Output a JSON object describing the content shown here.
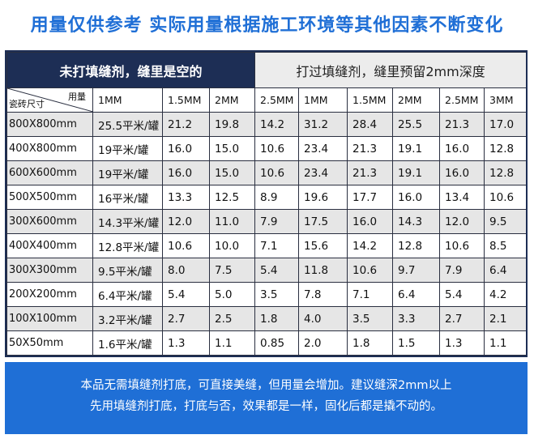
{
  "title": "用量仅供参考 实际用量根据施工环境等其他因素不断变化",
  "group_headers": {
    "unfilled": "未打填缝剂，缝里是空的",
    "filled": "打过填缝剂，缝里预留2mm深度"
  },
  "corner": {
    "top_label": "用量",
    "bottom_label": "瓷砖尺寸"
  },
  "columns": [
    "1MM",
    "1.5MM",
    "2MM",
    "2.5MM",
    "1MM",
    "1.5MM",
    "2MM",
    "2.5MM",
    "3MM"
  ],
  "rows": [
    {
      "size": "800X800mm",
      "values": [
        "25.5平米/罐",
        "21.2",
        "19.8",
        "14.2",
        "31.2",
        "28.4",
        "25.5",
        "21.3",
        "17.0"
      ]
    },
    {
      "size": "400X800mm",
      "values": [
        "19平米/罐",
        "16.0",
        "15.0",
        "10.6",
        "23.4",
        "21.3",
        "19.1",
        "16.0",
        "12.8"
      ]
    },
    {
      "size": "600X600mm",
      "values": [
        "19平米/罐",
        "16.0",
        "15.0",
        "10.6",
        "23.4",
        "21.3",
        "19.1",
        "16.0",
        "12.8"
      ]
    },
    {
      "size": "500X500mm",
      "values": [
        "16平米/罐",
        "13.3",
        "12.5",
        "8.9",
        "19.6",
        "17.7",
        "16.0",
        "13.4",
        "10.6"
      ]
    },
    {
      "size": "300X600mm",
      "values": [
        "14.3平米/罐",
        "12.0",
        "11.0",
        "7.9",
        "17.5",
        "16.0",
        "14.3",
        "12.0",
        "9.5"
      ]
    },
    {
      "size": "400X400mm",
      "values": [
        "12.8平米/罐",
        "10.6",
        "10.0",
        "7.1",
        "15.6",
        "14.2",
        "12.8",
        "10.6",
        "8.5"
      ]
    },
    {
      "size": "300X300mm",
      "values": [
        "9.5平米/罐",
        "8.0",
        "7.5",
        "5.4",
        "11.8",
        "10.6",
        "9.7",
        "7.9",
        "6.4"
      ]
    },
    {
      "size": "200X200mm",
      "values": [
        "6.4平米/罐",
        "5.4",
        "5.0",
        "3.5",
        "7.8",
        "7.1",
        "6.4",
        "5.4",
        "4.2"
      ]
    },
    {
      "size": "100X100mm",
      "values": [
        "3.2平米/罐",
        "2.7",
        "2.5",
        "1.8",
        "4.0",
        "3.5",
        "3.3",
        "2.7",
        "2.1"
      ]
    },
    {
      "size": "50X50mm",
      "values": [
        "1.6平米/罐",
        "1.3",
        "1.1",
        "0.85",
        "2.0",
        "1.8",
        "1.5",
        "1.3",
        "1.1"
      ]
    }
  ],
  "footer": {
    "line1": "本品无需填缝剂打底，可直接美缝，但用量会增加。建议缝深2mm以上",
    "line2": "先用填缝剂打底，打底与否，效果都是一样，固化后都是撬不动的。"
  }
}
